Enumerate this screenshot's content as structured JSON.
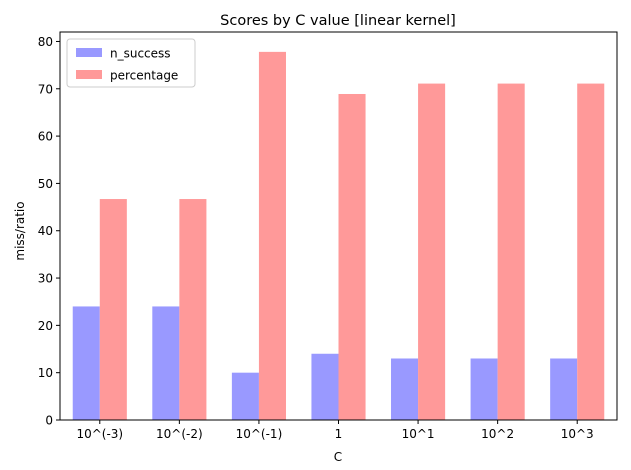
{
  "chart_data": {
    "type": "bar",
    "title": "Scores by C value [linear kernel]",
    "xlabel": "C",
    "ylabel": "miss/ratio",
    "categories": [
      "10^(-3)",
      "10^(-2)",
      "10^(-1)",
      "1",
      "10^1",
      "10^2",
      "10^3"
    ],
    "series": [
      {
        "name": "n_success",
        "values": [
          24,
          24,
          10,
          14,
          13,
          13,
          13
        ],
        "color": "#9999ff"
      },
      {
        "name": "percentage",
        "values": [
          46.7,
          46.7,
          77.8,
          68.9,
          71.1,
          71.1,
          71.1
        ],
        "color": "#ff9999"
      }
    ],
    "ylim": [
      0,
      82
    ],
    "yticks": [
      0,
      10,
      20,
      30,
      40,
      50,
      60,
      70,
      80
    ],
    "grid": false,
    "legend_position": "top-left"
  }
}
